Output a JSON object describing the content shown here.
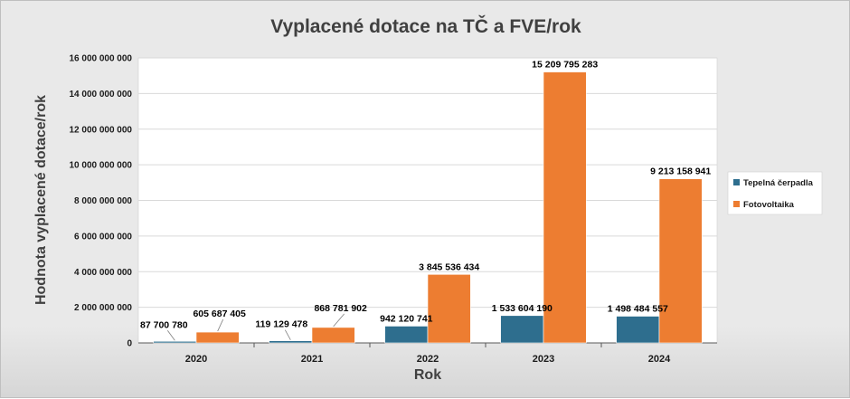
{
  "chart_data": {
    "type": "bar",
    "title": "Vyplacené dotace na TČ a FVE/rok",
    "xlabel": "Rok",
    "ylabel": "Hodnota vyplacené dotace/rok",
    "ylim": [
      0,
      16000000000
    ],
    "yticks": [
      0,
      2000000000,
      4000000000,
      6000000000,
      8000000000,
      10000000000,
      12000000000,
      14000000000,
      16000000000
    ],
    "ytick_labels": [
      "0",
      "2 000 000 000",
      "4 000 000 000",
      "6 000 000 000",
      "8 000 000 000",
      "10 000 000 000",
      "12 000 000 000",
      "14 000 000 000",
      "16 000 000 000"
    ],
    "grid": true,
    "legend_position": "right",
    "categories": [
      "2020",
      "2021",
      "2022",
      "2023",
      "2024"
    ],
    "series": [
      {
        "name": "Tepelná čerpadla",
        "color": "#2e6e8e",
        "values": [
          87700780,
          119129478,
          942120741,
          1533604190,
          1498484557
        ],
        "labels": [
          "87 700 780",
          "119 129 478",
          "942 120 741",
          "1 533 604 190",
          "1 498 484 557"
        ]
      },
      {
        "name": "Fotovoltaika",
        "color": "#ed7d31",
        "values": [
          605687405,
          868781902,
          3845536434,
          15209795283,
          9213158941
        ],
        "labels": [
          "605 687 405",
          "868 781 902",
          "3 845 536 434",
          "15 209 795 283",
          "9 213 158 941"
        ]
      }
    ]
  }
}
